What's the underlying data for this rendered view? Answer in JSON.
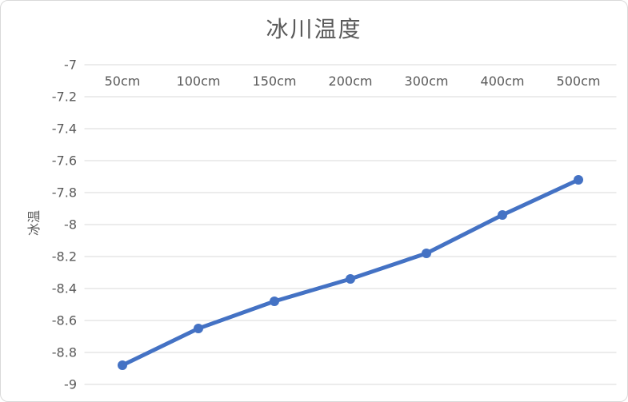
{
  "chart_data": {
    "type": "line",
    "title": "冰川温度",
    "xlabel": "",
    "ylabel": "冰温",
    "categories": [
      "50cm",
      "100cm",
      "150cm",
      "200cm",
      "300cm",
      "400cm",
      "500cm"
    ],
    "series": [
      {
        "name": "冰温",
        "values": [
          -8.88,
          -8.65,
          -8.48,
          -8.34,
          -8.18,
          -7.94,
          -7.72
        ]
      }
    ],
    "ylim": [
      -9,
      -7
    ],
    "yticks": [
      -7,
      -7.2,
      -7.4,
      -7.6,
      -7.8,
      -8,
      -8.2,
      -8.4,
      -8.6,
      -8.8,
      -9
    ],
    "ytick_labels": [
      "-7",
      "-7.2",
      "-7.4",
      "-7.6",
      "-7.8",
      "-8",
      "-8.2",
      "-8.4",
      "-8.6",
      "-8.8",
      "-9"
    ],
    "grid": true,
    "legend": "none",
    "x_labels_position": "top",
    "marker": "circle",
    "colors": {
      "line": "#4472C4",
      "marker": "#4472C4",
      "grid": "#d9d9d9",
      "text": "#595959",
      "border": "#d9d9d9",
      "background": "#ffffff"
    }
  }
}
